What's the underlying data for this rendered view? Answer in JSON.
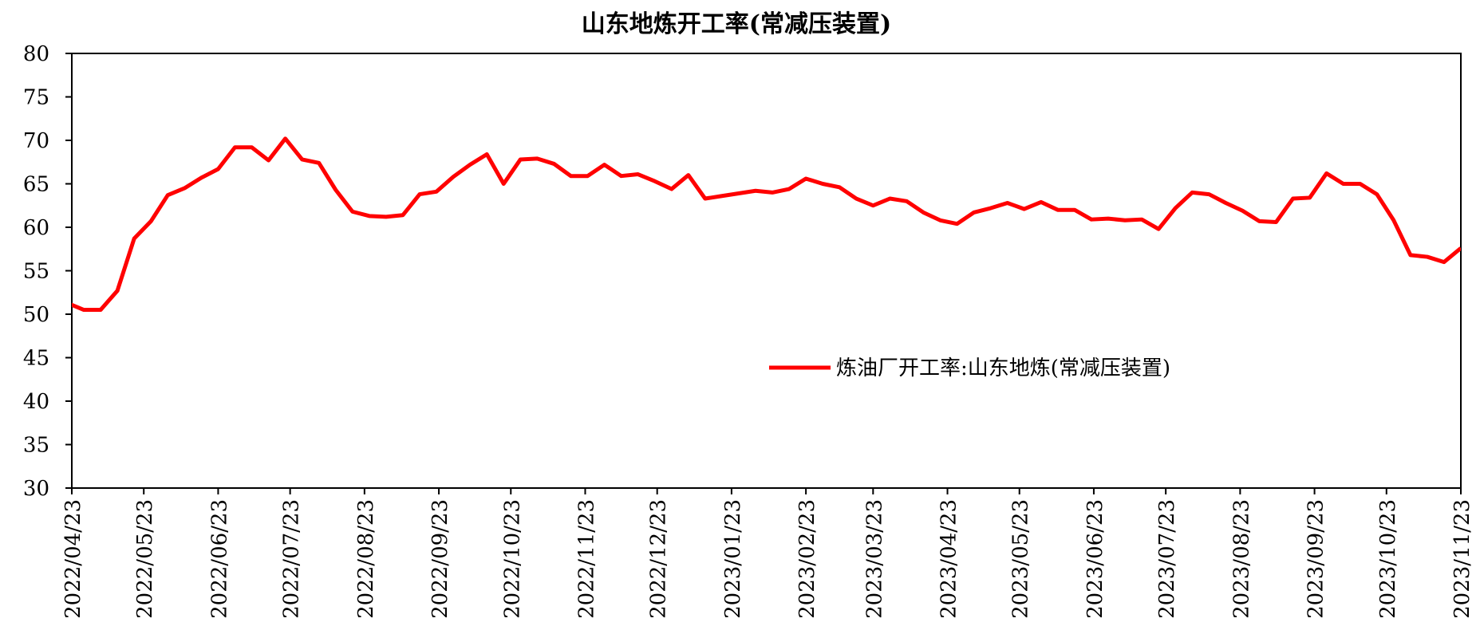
{
  "chart_data": {
    "type": "line",
    "title": "山东地炼开工率(常减压装置)",
    "x": [
      "2022-04-21",
      "2022-04-28",
      "2022-05-05",
      "2022-05-12",
      "2022-05-19",
      "2022-05-26",
      "2022-06-02",
      "2022-06-09",
      "2022-06-16",
      "2022-06-23",
      "2022-06-30",
      "2022-07-07",
      "2022-07-14",
      "2022-07-21",
      "2022-07-28",
      "2022-08-04",
      "2022-08-11",
      "2022-08-18",
      "2022-08-25",
      "2022-09-01",
      "2022-09-08",
      "2022-09-15",
      "2022-09-22",
      "2022-09-29",
      "2022-10-06",
      "2022-10-13",
      "2022-10-20",
      "2022-10-27",
      "2022-11-03",
      "2022-11-10",
      "2022-11-17",
      "2022-11-24",
      "2022-12-01",
      "2022-12-08",
      "2022-12-15",
      "2022-12-22",
      "2022-12-29",
      "2023-01-05",
      "2023-01-12",
      "2023-01-19",
      "2023-01-26",
      "2023-02-02",
      "2023-02-09",
      "2023-02-16",
      "2023-02-23",
      "2023-03-02",
      "2023-03-09",
      "2023-03-16",
      "2023-03-23",
      "2023-03-30",
      "2023-04-06",
      "2023-04-13",
      "2023-04-20",
      "2023-04-27",
      "2023-05-04",
      "2023-05-11",
      "2023-05-18",
      "2023-05-25",
      "2023-06-01",
      "2023-06-08",
      "2023-06-15",
      "2023-06-22",
      "2023-06-29",
      "2023-07-06",
      "2023-07-13",
      "2023-07-20",
      "2023-07-27",
      "2023-08-03",
      "2023-08-10",
      "2023-08-17",
      "2023-08-24",
      "2023-08-31",
      "2023-09-07",
      "2023-09-14",
      "2023-09-21",
      "2023-09-28",
      "2023-10-05",
      "2023-10-12",
      "2023-10-19",
      "2023-10-26",
      "2023-11-02",
      "2023-11-09",
      "2023-11-16",
      "2023-11-23"
    ],
    "series": [
      {
        "name": "炼油厂开工率:山东地炼(常减压装置)",
        "color": "#ff0000",
        "values": [
          51.3,
          50.5,
          50.5,
          52.7,
          58.7,
          60.7,
          63.7,
          64.5,
          65.7,
          66.7,
          69.2,
          69.2,
          67.7,
          70.2,
          67.8,
          67.4,
          64.3,
          61.8,
          61.3,
          61.2,
          61.4,
          63.8,
          64.1,
          65.8,
          67.2,
          68.4,
          65.0,
          67.8,
          67.9,
          67.3,
          65.9,
          65.9,
          67.2,
          65.9,
          66.1,
          65.3,
          64.4,
          66.0,
          63.3,
          63.6,
          63.9,
          64.2,
          64.0,
          64.4,
          65.6,
          65.0,
          64.6,
          63.3,
          62.5,
          63.3,
          63.0,
          61.7,
          60.8,
          60.4,
          61.7,
          62.2,
          62.8,
          62.1,
          62.9,
          62.0,
          62.0,
          60.9,
          61.0,
          60.8,
          60.9,
          59.8,
          62.2,
          64.0,
          63.8,
          62.8,
          61.9,
          60.7,
          60.6,
          63.3,
          63.4,
          66.2,
          65.0,
          65.0,
          63.8,
          60.8,
          56.8,
          56.6,
          56.0,
          57.6
        ]
      }
    ],
    "xlim": [
      "2022-04-23",
      "2023-11-23"
    ],
    "xticks": [
      {
        "value": "2022-04-23",
        "label": "2022/04/23"
      },
      {
        "value": "2022-05-23",
        "label": "2022/05/23"
      },
      {
        "value": "2022-06-23",
        "label": "2022/06/23"
      },
      {
        "value": "2022-07-23",
        "label": "2022/07/23"
      },
      {
        "value": "2022-08-23",
        "label": "2022/08/23"
      },
      {
        "value": "2022-09-23",
        "label": "2022/09/23"
      },
      {
        "value": "2022-10-23",
        "label": "2022/10/23"
      },
      {
        "value": "2022-11-23",
        "label": "2022/11/23"
      },
      {
        "value": "2022-12-23",
        "label": "2022/12/23"
      },
      {
        "value": "2023-01-23",
        "label": "2023/01/23"
      },
      {
        "value": "2023-02-23",
        "label": "2023/02/23"
      },
      {
        "value": "2023-03-23",
        "label": "2023/03/23"
      },
      {
        "value": "2023-04-23",
        "label": "2023/04/23"
      },
      {
        "value": "2023-05-23",
        "label": "2023/05/23"
      },
      {
        "value": "2023-06-23",
        "label": "2023/06/23"
      },
      {
        "value": "2023-07-23",
        "label": "2023/07/23"
      },
      {
        "value": "2023-08-23",
        "label": "2023/08/23"
      },
      {
        "value": "2023-09-23",
        "label": "2023/09/23"
      },
      {
        "value": "2023-10-23",
        "label": "2023/10/23"
      },
      {
        "value": "2023-11-23",
        "label": "2023/11/23"
      }
    ],
    "ylim": [
      30,
      80
    ],
    "yticks": [
      30,
      35,
      40,
      45,
      50,
      55,
      60,
      65,
      70,
      75,
      80
    ],
    "grid": false,
    "legend": "center-right"
  }
}
